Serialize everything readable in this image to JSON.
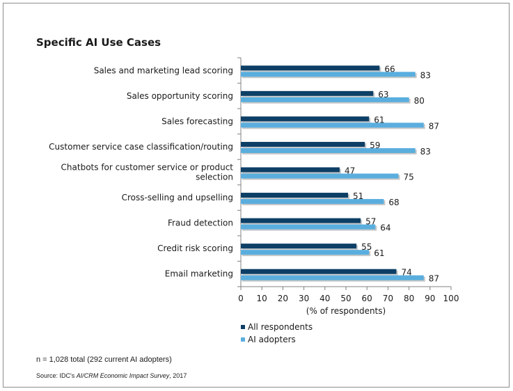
{
  "note": "n = 1,028 total (292 current AI adopters)",
  "source": {
    "prefix": "Source: IDC's ",
    "italic": "AI/CRM Economic Impact Survey",
    "suffix": ", 2017"
  },
  "colors": {
    "frame": "#8c8c8c"
  },
  "chart_data": {
    "type": "bar",
    "orientation": "horizontal",
    "title": "Specific AI Use Cases",
    "xlabel": "(% of respondents)",
    "ylabel": "",
    "xlim": [
      0,
      100
    ],
    "xticks": [
      0,
      10,
      20,
      30,
      40,
      50,
      60,
      70,
      80,
      90,
      100
    ],
    "grid": false,
    "legend_position": "bottom-left",
    "categories": [
      [
        "Sales and marketing lead scoring"
      ],
      [
        "Sales opportunity scoring"
      ],
      [
        "Sales forecasting"
      ],
      [
        "Customer service case classification/routing"
      ],
      [
        "Chatbots for customer service or product",
        "selection"
      ],
      [
        "Cross-selling and upselling"
      ],
      [
        "Fraud detection"
      ],
      [
        "Credit risk scoring"
      ],
      [
        "Email marketing"
      ]
    ],
    "series": [
      {
        "name": "All respondents",
        "color": "#0d3f66",
        "values": [
          66,
          63,
          61,
          59,
          47,
          51,
          57,
          55,
          74
        ]
      },
      {
        "name": "AI adopters",
        "color": "#5aaede",
        "values": [
          83,
          80,
          87,
          83,
          75,
          68,
          64,
          61,
          87
        ]
      }
    ]
  }
}
